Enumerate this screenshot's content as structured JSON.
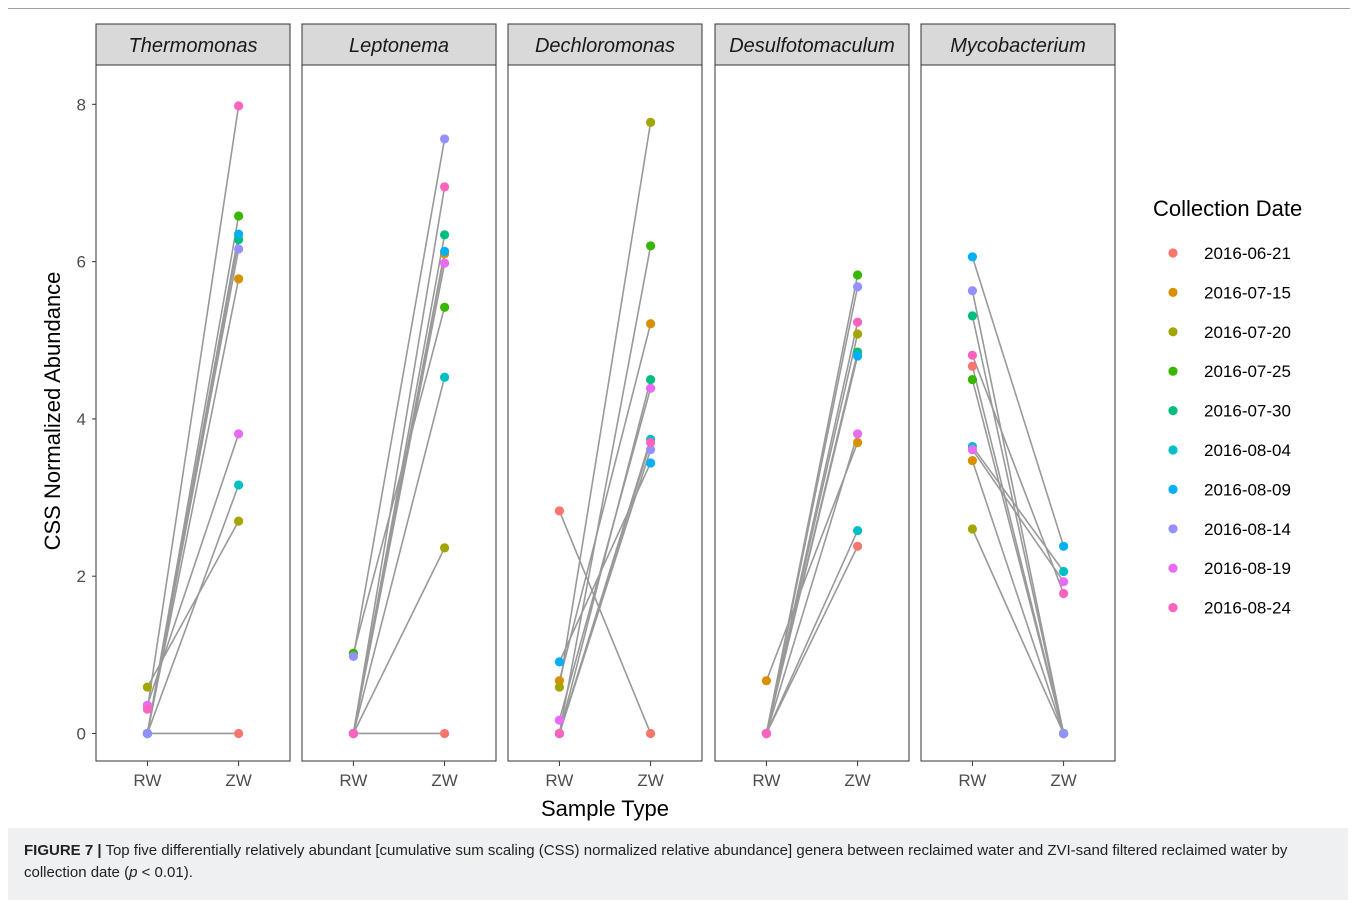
{
  "chart_data": {
    "type": "scatter",
    "subtype": "paired-dot-line facets",
    "xlabel": "Sample Type",
    "ylabel": "CSS Normalized Abundance",
    "categories": [
      "RW",
      "ZW"
    ],
    "ylim": [
      -0.35,
      8.5
    ],
    "yticks": [
      0,
      2,
      4,
      6,
      8
    ],
    "grid": false,
    "legend": {
      "title": "Collection Date",
      "position": "right",
      "entries": [
        {
          "label": "2016-06-21",
          "color": "#F8766D"
        },
        {
          "label": "2016-07-15",
          "color": "#D89000"
        },
        {
          "label": "2016-07-20",
          "color": "#A3A500"
        },
        {
          "label": "2016-07-25",
          "color": "#39B600"
        },
        {
          "label": "2016-07-30",
          "color": "#00BF7D"
        },
        {
          "label": "2016-08-04",
          "color": "#00BFC4"
        },
        {
          "label": "2016-08-09",
          "color": "#00B0F6"
        },
        {
          "label": "2016-08-14",
          "color": "#9590FF"
        },
        {
          "label": "2016-08-19",
          "color": "#E76BF3"
        },
        {
          "label": "2016-08-24",
          "color": "#FF62BC"
        }
      ]
    },
    "facets": [
      {
        "title": "Thermomonas",
        "RW": [
          0,
          0,
          0.59,
          0,
          0,
          0,
          0,
          0,
          0.36,
          0.31
        ],
        "ZW": [
          0,
          5.78,
          2.7,
          6.58,
          6.28,
          3.16,
          6.35,
          6.16,
          3.81,
          7.98
        ]
      },
      {
        "title": "Leptonema",
        "RW": [
          0,
          0,
          0,
          1.02,
          0,
          0,
          0,
          0.98,
          0,
          0
        ],
        "ZW": [
          0,
          6.1,
          2.36,
          5.42,
          6.34,
          4.53,
          6.13,
          7.56,
          5.98,
          6.95
        ]
      },
      {
        "title": "Dechloromonas",
        "RW": [
          2.83,
          0.67,
          0.59,
          0,
          0,
          0,
          0.91,
          0,
          0.17,
          0
        ],
        "ZW": [
          0,
          5.21,
          7.77,
          6.2,
          4.5,
          3.74,
          3.44,
          3.61,
          4.39,
          3.7
        ]
      },
      {
        "title": "Desulfotomaculum",
        "RW": [
          0,
          0.67,
          0,
          0,
          0,
          0,
          0,
          0,
          0,
          0
        ],
        "ZW": [
          2.38,
          3.7,
          5.08,
          5.83,
          4.85,
          2.58,
          4.8,
          5.68,
          3.81,
          5.23
        ]
      },
      {
        "title": "Mycobacterium",
        "RW": [
          4.67,
          3.47,
          2.6,
          4.5,
          5.31,
          3.65,
          6.06,
          5.63,
          3.61,
          4.81
        ],
        "ZW": [
          0,
          0,
          0,
          0,
          0,
          2.06,
          2.38,
          0,
          1.93,
          1.78
        ]
      }
    ]
  },
  "caption": {
    "label": "FIGURE 7 |",
    "text": " Top five differentially relatively abundant [cumulative sum scaling (CSS) normalized relative abundance] genera between reclaimed water and ZVI-sand filtered reclaimed water by collection date (",
    "pvar": "p",
    "ptext": " < 0.01)."
  }
}
